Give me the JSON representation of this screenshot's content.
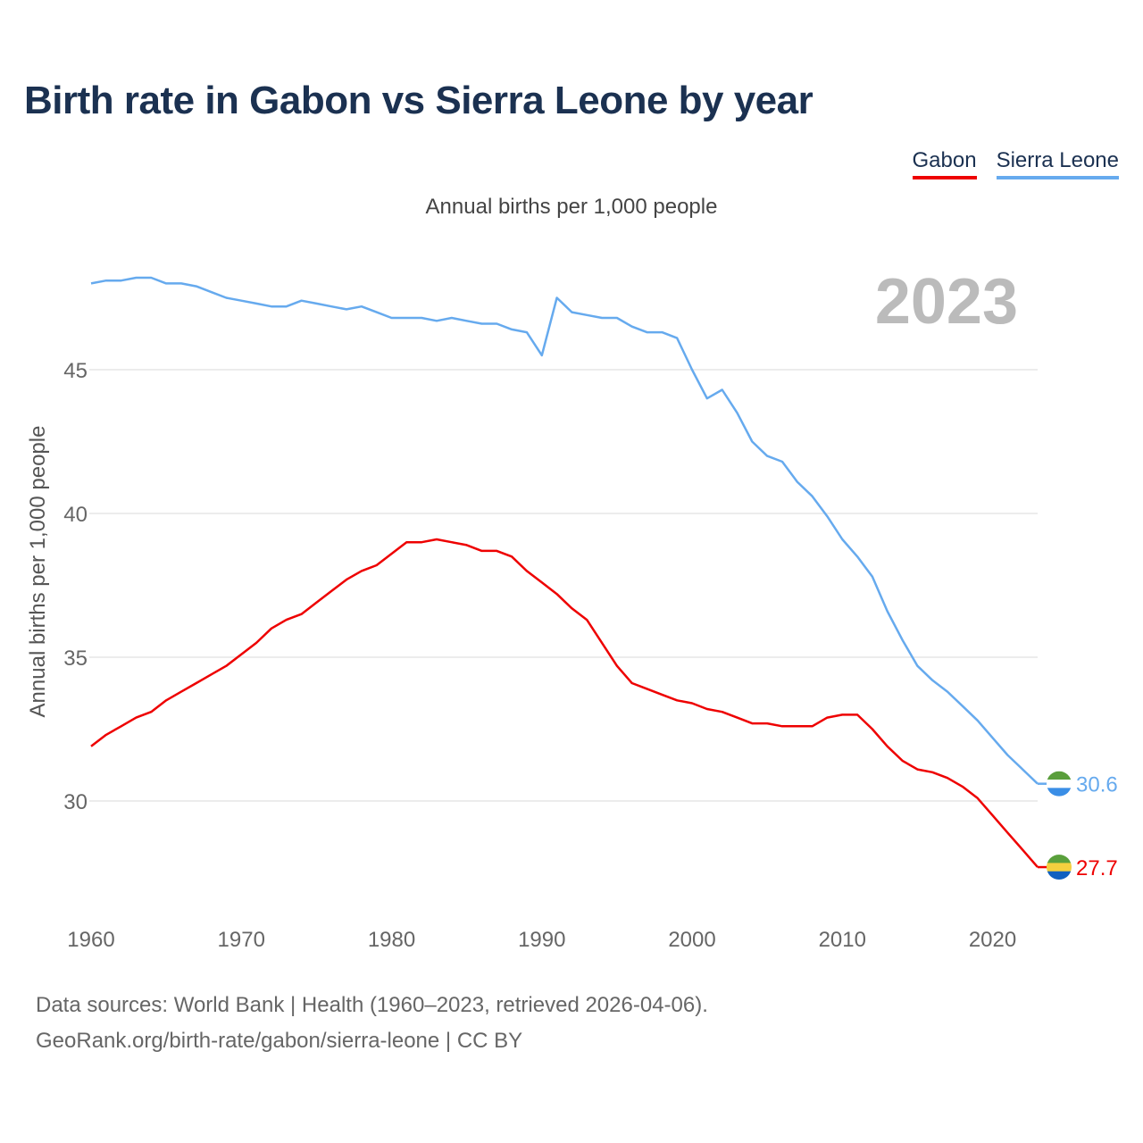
{
  "title": "Birth rate in Gabon vs Sierra Leone by year",
  "legend": [
    {
      "label": "Gabon",
      "color": "#ee0000"
    },
    {
      "label": "Sierra Leone",
      "color": "#66aaee"
    }
  ],
  "subtitle": "Annual births per 1,000 people",
  "year_badge": "2023",
  "source": {
    "line1": "Data sources: World Bank | Health (1960–2023, retrieved 2026-04-06).",
    "line2": "GeoRank.org/birth-rate/gabon/sierra-leone | CC BY"
  },
  "chart_data": {
    "type": "line",
    "title": "Birth rate in Gabon vs Sierra Leone by year",
    "ylabel": "Annual births per 1,000 people",
    "xlabel": "",
    "xlim": [
      1960,
      2023
    ],
    "ylim": [
      26.5,
      49
    ],
    "x_ticks": [
      1960,
      1970,
      1980,
      1990,
      2000,
      2010,
      2020
    ],
    "y_ticks": [
      30,
      35,
      40,
      45
    ],
    "grid": true,
    "x": [
      1960,
      1961,
      1962,
      1963,
      1964,
      1965,
      1966,
      1967,
      1968,
      1969,
      1970,
      1971,
      1972,
      1973,
      1974,
      1975,
      1976,
      1977,
      1978,
      1979,
      1980,
      1981,
      1982,
      1983,
      1984,
      1985,
      1986,
      1987,
      1988,
      1989,
      1990,
      1991,
      1992,
      1993,
      1994,
      1995,
      1996,
      1997,
      1998,
      1999,
      2000,
      2001,
      2002,
      2003,
      2004,
      2005,
      2006,
      2007,
      2008,
      2009,
      2010,
      2011,
      2012,
      2013,
      2014,
      2015,
      2016,
      2017,
      2018,
      2019,
      2020,
      2021,
      2022,
      2023
    ],
    "series": [
      {
        "name": "Gabon",
        "color": "#ee0000",
        "end_label": "27.7",
        "flag": "gabon-flag-icon",
        "values": [
          31.9,
          32.3,
          32.6,
          32.9,
          33.1,
          33.5,
          33.8,
          34.1,
          34.4,
          34.7,
          35.1,
          35.5,
          36.0,
          36.3,
          36.5,
          36.9,
          37.3,
          37.7,
          38.0,
          38.2,
          38.6,
          39.0,
          39.0,
          39.1,
          39.0,
          38.9,
          38.7,
          38.7,
          38.5,
          38.0,
          37.6,
          37.2,
          36.7,
          36.3,
          35.5,
          34.7,
          34.1,
          33.9,
          33.7,
          33.5,
          33.4,
          33.2,
          33.1,
          32.9,
          32.7,
          32.7,
          32.6,
          32.6,
          32.6,
          32.9,
          33.0,
          33.0,
          32.5,
          31.9,
          31.4,
          31.1,
          31.0,
          30.8,
          30.5,
          30.1,
          29.5,
          28.9,
          28.3,
          27.7
        ]
      },
      {
        "name": "Sierra Leone",
        "color": "#66aaee",
        "end_label": "30.6",
        "flag": "sierra-leone-flag-icon",
        "values": [
          48.0,
          48.1,
          48.1,
          48.2,
          48.2,
          48.0,
          48.0,
          47.9,
          47.7,
          47.5,
          47.4,
          47.3,
          47.2,
          47.2,
          47.4,
          47.3,
          47.2,
          47.1,
          47.2,
          47.0,
          46.8,
          46.8,
          46.8,
          46.7,
          46.8,
          46.7,
          46.6,
          46.6,
          46.4,
          46.3,
          45.5,
          47.5,
          47.0,
          46.9,
          46.8,
          46.8,
          46.5,
          46.3,
          46.3,
          46.1,
          45.0,
          44.0,
          44.3,
          43.5,
          42.5,
          42.0,
          41.8,
          41.1,
          40.6,
          39.9,
          39.1,
          38.5,
          37.8,
          36.6,
          35.6,
          34.7,
          34.2,
          33.8,
          33.3,
          32.8,
          32.2,
          31.6,
          31.1,
          30.6
        ]
      }
    ]
  }
}
